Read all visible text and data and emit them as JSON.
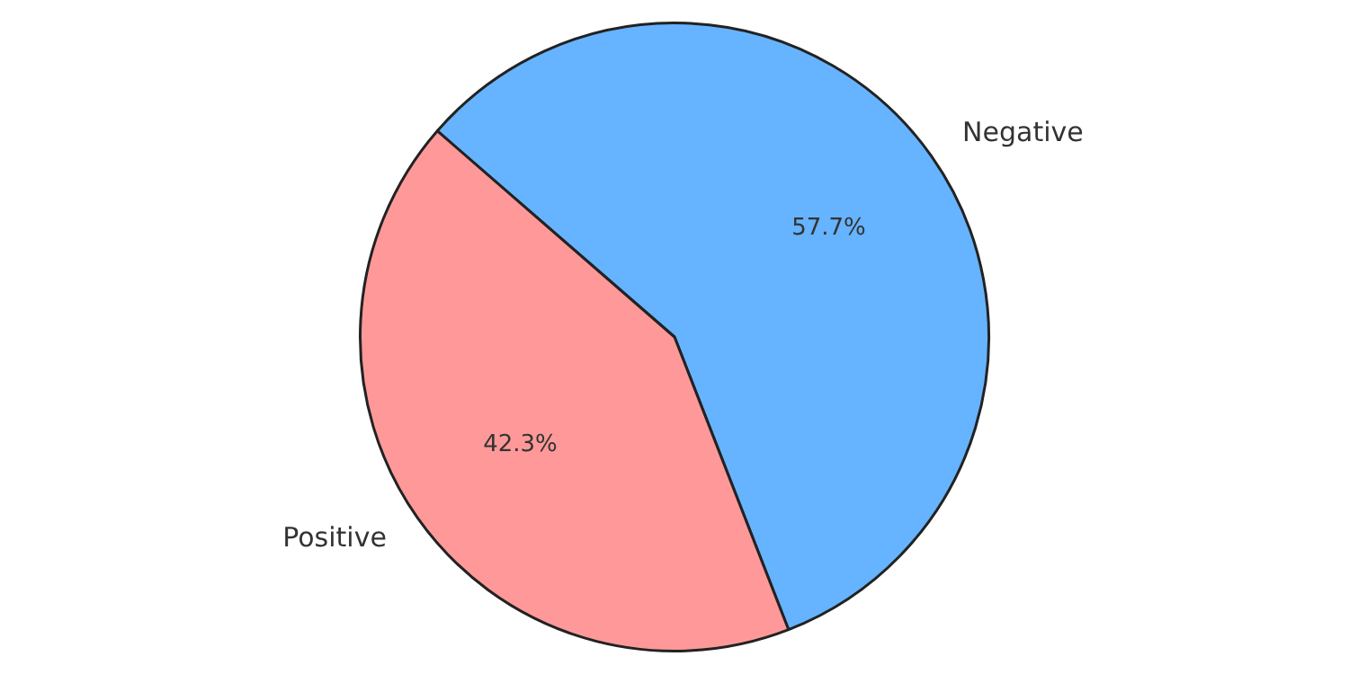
{
  "chart_data": {
    "type": "pie",
    "categories": [
      "Negative",
      "Positive"
    ],
    "values": [
      57.7,
      42.3
    ],
    "colors": [
      "#66b3ff",
      "#ff9999"
    ],
    "value_labels": [
      "57.7%",
      "42.3%"
    ],
    "legend": false
  }
}
